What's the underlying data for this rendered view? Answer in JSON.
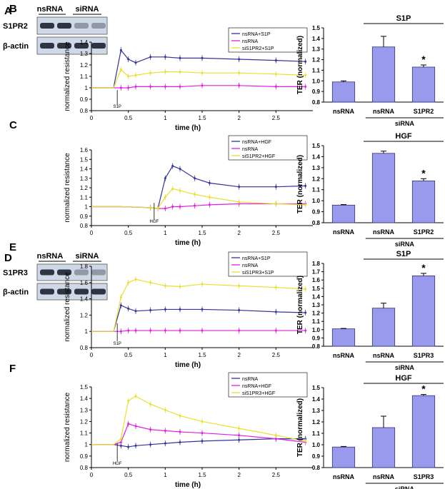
{
  "panels": [
    {
      "id": "A",
      "kind": "blot",
      "letter": "A",
      "header": [
        "nsRNA",
        "siRNA"
      ],
      "rows": [
        "S1PR2",
        "β-actin"
      ]
    },
    {
      "id": "B",
      "kind": "line",
      "letter": "B",
      "ylabel": "normalized resistance",
      "xlabel": "time (h)",
      "legend": [
        "nsRNA+S1P",
        "nsRNA",
        "siS1PR2+S1P"
      ],
      "marker": "S1P"
    },
    {
      "id": "Bbar",
      "kind": "bar",
      "title": "S1P",
      "ylabel": "TER (normalized)",
      "categories": [
        "nsRNA",
        "nsRNA",
        "S1PR2"
      ],
      "group": "siRNA",
      "star": "*"
    },
    {
      "id": "C",
      "kind": "line",
      "letter": "C",
      "ylabel": "normalized resistance",
      "xlabel": "time (h)",
      "legend": [
        "nsRNA+HGF",
        "nsRNA",
        "siS1PR2+HGF"
      ],
      "marker": "HGF"
    },
    {
      "id": "Cbar",
      "kind": "bar",
      "title": "HGF",
      "ylabel": "TER (normalized)",
      "categories": [
        "nsRNA",
        "nsRNA",
        "S1PR2"
      ],
      "group": "siRNA",
      "star": "*"
    },
    {
      "id": "D",
      "kind": "blot",
      "letter": "D",
      "header": [
        "nsRNA",
        "siRNA"
      ],
      "rows": [
        "S1PR3",
        "β-actin"
      ]
    },
    {
      "id": "E",
      "kind": "line",
      "letter": "E",
      "ylabel": "normalized resistance",
      "xlabel": "time (h)",
      "legend": [
        "nsRNA+S1P",
        "nsRNA",
        "siS1PR3+S1P"
      ],
      "marker": "S1P"
    },
    {
      "id": "Ebar",
      "kind": "bar",
      "title": "S1P",
      "ylabel": "TER (normalized)",
      "categories": [
        "nsRNA",
        "nsRNA",
        "S1PR3"
      ],
      "group": "siRNA",
      "star": "*"
    },
    {
      "id": "F",
      "kind": "line",
      "letter": "F",
      "ylabel": "normalized resistance",
      "xlabel": "time (h)",
      "legend": [
        "nsRNA",
        "nsRNA+HGF",
        "siS1PR3+HGF"
      ],
      "marker": "HGF"
    },
    {
      "id": "Fbar",
      "kind": "bar",
      "title": "HGF",
      "ylabel": "TER (normalized)",
      "categories": [
        "nsRNA",
        "nsRNA",
        "S1PR3"
      ],
      "group": "siRNA",
      "star": "*"
    }
  ],
  "chart_data": [
    {
      "panel": "B",
      "type": "line",
      "xlim": [
        0,
        3
      ],
      "ylim": [
        0.8,
        1.4
      ],
      "xticks": [
        "0",
        "0.5",
        "1",
        "1.5",
        "2",
        "2.5"
      ],
      "yticks": [
        "0.8",
        "0.9",
        "1",
        "1.1",
        "1.2",
        "1.3",
        "1.4"
      ],
      "x": [
        0,
        0.3,
        0.4,
        0.5,
        0.6,
        0.8,
        1.0,
        1.2,
        1.5,
        2.0,
        2.5,
        2.9
      ],
      "series": [
        {
          "name": "nsRNA+S1P",
          "color": "#333399",
          "values": [
            1.0,
            1.0,
            1.33,
            1.25,
            1.22,
            1.27,
            1.27,
            1.26,
            1.26,
            1.25,
            1.24,
            1.23
          ]
        },
        {
          "name": "nsRNA",
          "color": "#e020e0",
          "values": [
            1.0,
            1.0,
            1.0,
            1.0,
            1.01,
            1.01,
            1.01,
            1.01,
            1.02,
            1.02,
            1.01,
            1.01
          ]
        },
        {
          "name": "siS1PR2+S1P",
          "color": "#e8e030",
          "values": [
            1.0,
            1.0,
            1.16,
            1.1,
            1.11,
            1.13,
            1.14,
            1.14,
            1.13,
            1.13,
            1.12,
            1.11
          ]
        }
      ]
    },
    {
      "panel": "Bbar",
      "type": "bar",
      "categories": [
        "nsRNA",
        "nsRNA",
        "S1PR2"
      ],
      "values": [
        0.99,
        1.32,
        1.13
      ],
      "errors": [
        0.01,
        0.1,
        0.02
      ],
      "ylim": [
        0.8,
        1.5
      ],
      "yticks": [
        "0.8",
        "0.9",
        "1.0",
        "1.1",
        "1.2",
        "1.3",
        "1.4",
        "1.5"
      ],
      "starIndex": 2
    },
    {
      "panel": "C",
      "type": "line",
      "xlim": [
        0,
        3
      ],
      "ylim": [
        0.8,
        1.6
      ],
      "xticks": [
        "0",
        "0.5",
        "1",
        "1.5",
        "2",
        "2.5"
      ],
      "yticks": [
        "0.8",
        "0.9",
        "1",
        "1.1",
        "1.2",
        "1.3",
        "1.4",
        "1.5",
        "1.6"
      ],
      "x": [
        0,
        0.4,
        0.8,
        0.9,
        1.0,
        1.1,
        1.2,
        1.4,
        1.6,
        2.0,
        2.5,
        2.9
      ],
      "series": [
        {
          "name": "nsRNA+HGF",
          "color": "#333399",
          "values": [
            1.0,
            1.0,
            0.99,
            0.98,
            1.3,
            1.43,
            1.4,
            1.3,
            1.25,
            1.21,
            1.21,
            1.22
          ]
        },
        {
          "name": "nsRNA",
          "color": "#e020e0",
          "values": [
            1.0,
            1.0,
            0.99,
            0.98,
            0.98,
            1.0,
            1.0,
            1.01,
            1.02,
            1.03,
            1.03,
            1.03
          ]
        },
        {
          "name": "siS1PR2+HGF",
          "color": "#e8e030",
          "values": [
            1.0,
            1.0,
            0.99,
            0.98,
            1.1,
            1.19,
            1.17,
            1.13,
            1.1,
            1.05,
            1.03,
            1.02
          ]
        }
      ]
    },
    {
      "panel": "Cbar",
      "type": "bar",
      "categories": [
        "nsRNA",
        "nsRNA",
        "S1PR2"
      ],
      "values": [
        0.96,
        1.43,
        1.18
      ],
      "errors": [
        0.005,
        0.02,
        0.02
      ],
      "ylim": [
        0.8,
        1.5
      ],
      "yticks": [
        "0.8",
        "0.9",
        "1.0",
        "1.1",
        "1.2",
        "1.3",
        "1.4",
        "1.5"
      ],
      "starIndex": 2
    },
    {
      "panel": "E",
      "type": "line",
      "xlim": [
        0,
        3
      ],
      "ylim": [
        0.8,
        1.8
      ],
      "xticks": [
        "0",
        "0.5",
        "1",
        "1.5",
        "2",
        "2.5"
      ],
      "yticks": [
        "0.8",
        "1",
        "1.2",
        "1.4",
        "1.6",
        "1.8"
      ],
      "x": [
        0,
        0.3,
        0.4,
        0.5,
        0.6,
        0.8,
        1.0,
        1.2,
        1.5,
        2.0,
        2.5,
        2.9
      ],
      "series": [
        {
          "name": "nsRNA+S1P",
          "color": "#333399",
          "values": [
            1.0,
            1.0,
            1.32,
            1.28,
            1.25,
            1.26,
            1.27,
            1.27,
            1.27,
            1.26,
            1.24,
            1.23
          ]
        },
        {
          "name": "nsRNA",
          "color": "#e020e0",
          "values": [
            1.0,
            1.0,
            1.0,
            1.01,
            1.01,
            1.01,
            1.01,
            1.01,
            1.01,
            1.01,
            1.01,
            1.01
          ]
        },
        {
          "name": "siS1PR3+S1P",
          "color": "#e8e030",
          "values": [
            1.0,
            1.0,
            1.42,
            1.6,
            1.64,
            1.6,
            1.56,
            1.55,
            1.58,
            1.56,
            1.54,
            1.52
          ]
        }
      ]
    },
    {
      "panel": "Ebar",
      "type": "bar",
      "categories": [
        "nsRNA",
        "nsRNA",
        "S1PR3"
      ],
      "values": [
        1.01,
        1.26,
        1.65
      ],
      "errors": [
        0.005,
        0.06,
        0.03
      ],
      "ylim": [
        0.8,
        1.8
      ],
      "yticks": [
        "0.8",
        "0.9",
        "1.0",
        "1.1",
        "1.2",
        "1.3",
        "1.4",
        "1.5",
        "1.6",
        "1.7",
        "1.8"
      ],
      "starIndex": 2
    },
    {
      "panel": "F",
      "type": "line",
      "xlim": [
        0,
        3
      ],
      "ylim": [
        0.8,
        1.5
      ],
      "xticks": [
        "0",
        "0.5",
        "1",
        "1.5",
        "2",
        "2.5"
      ],
      "yticks": [
        "0.8",
        "0.9",
        "1",
        "1.1",
        "1.2",
        "1.3",
        "1.4",
        "1.5"
      ],
      "x": [
        0,
        0.3,
        0.4,
        0.5,
        0.6,
        0.8,
        1.0,
        1.2,
        1.5,
        2.0,
        2.5,
        2.9
      ],
      "series": [
        {
          "name": "nsRNA",
          "color": "#333399",
          "values": [
            1.0,
            1.0,
            0.99,
            0.98,
            0.99,
            1.0,
            1.01,
            1.02,
            1.03,
            1.04,
            1.05,
            1.05
          ]
        },
        {
          "name": "nsRNA+HGF",
          "color": "#e020e0",
          "values": [
            1.0,
            1.0,
            1.02,
            1.18,
            1.16,
            1.13,
            1.12,
            1.11,
            1.1,
            1.08,
            1.05,
            1.02
          ]
        },
        {
          "name": "siS1PR3+HGF",
          "color": "#e8e030",
          "values": [
            1.0,
            1.0,
            1.05,
            1.38,
            1.42,
            1.35,
            1.3,
            1.25,
            1.2,
            1.14,
            1.08,
            1.03
          ]
        }
      ]
    },
    {
      "panel": "Fbar",
      "type": "bar",
      "categories": [
        "nsRNA",
        "nsRNA",
        "S1PR3"
      ],
      "values": [
        0.98,
        1.15,
        1.43
      ],
      "errors": [
        0.005,
        0.1,
        0.01
      ],
      "ylim": [
        0.8,
        1.5
      ],
      "yticks": [
        "0.8",
        "0.9",
        "1.0",
        "1.1",
        "1.2",
        "1.3",
        "1.4",
        "1.5"
      ],
      "starIndex": 2
    }
  ],
  "colors": {
    "bar": "#9999ee",
    "barStroke": "#33337a",
    "blotBg": "#cfd8e6",
    "band": "#1c2430"
  }
}
